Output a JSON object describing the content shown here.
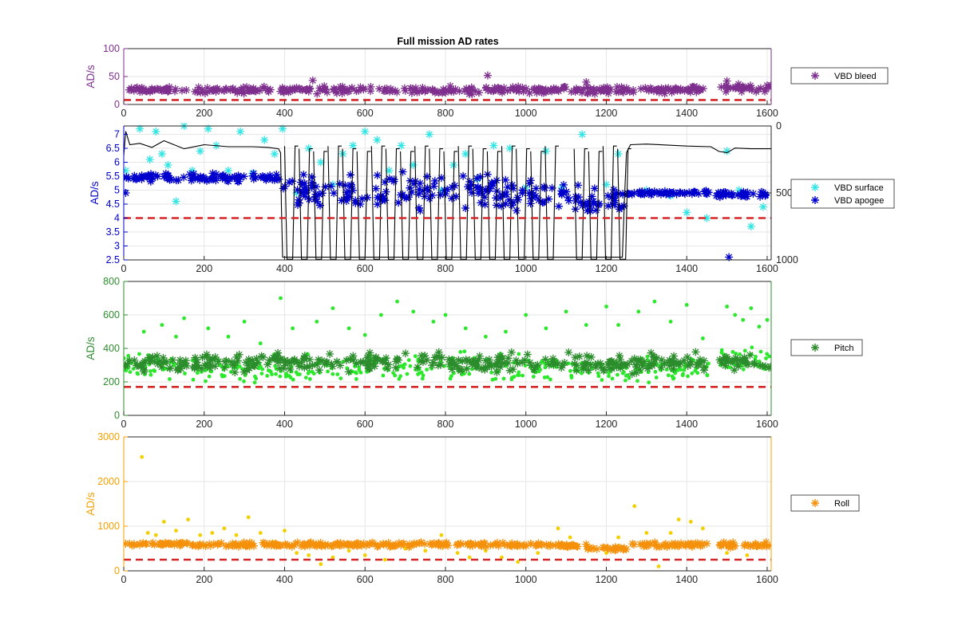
{
  "chart_data": [
    {
      "type": "scatter",
      "title": "Full mission AD rates",
      "ylabel": "AD/s",
      "xlim": [
        0,
        1610
      ],
      "ylim": [
        0,
        100
      ],
      "xticks": [
        "0",
        "200",
        "400",
        "600",
        "800",
        "1000",
        "1200",
        "1400",
        "1600"
      ],
      "yticks": [
        "0",
        "50",
        "100"
      ],
      "grid": true,
      "legend_position": "right",
      "axis_color": "#7E2F8E",
      "threshold": {
        "value": 8,
        "color": "#D62728"
      },
      "series": [
        {
          "name": "VBD bleed",
          "marker": "star",
          "color": "#7E2F8E",
          "segments": [
            {
              "x0": 0,
              "x1": 160,
              "y": 26,
              "spread": 3.5
            },
            {
              "x0": 175,
              "x1": 1455,
              "y": 26,
              "spread": 4.5
            },
            {
              "x0": 1480,
              "x1": 1610,
              "y": 30,
              "spread": 5
            }
          ],
          "x": [
            470,
            905,
            1150,
            1500
          ],
          "y": [
            43,
            52,
            40,
            42
          ]
        }
      ]
    },
    {
      "type": "scatter",
      "ylabel": "AD/s",
      "xlim": [
        0,
        1610
      ],
      "ylim": [
        2.5,
        7.3
      ],
      "xticks": [
        "0",
        "200",
        "400",
        "600",
        "800",
        "1000",
        "1200",
        "1400",
        "1600"
      ],
      "yticks": [
        "2.5",
        "3",
        "3.5",
        "4",
        "4.5",
        "5",
        "5.5",
        "6",
        "6.5",
        "7"
      ],
      "y2lim": [
        0,
        1000
      ],
      "y2ticks": [
        "0",
        "500",
        "1000"
      ],
      "grid": true,
      "legend_position": "right",
      "axis_color": "#0000CC",
      "threshold": {
        "value": 4.0,
        "color": "#D62728"
      },
      "series": [
        {
          "name": "VBD surface",
          "marker": "star",
          "color": "#33E5E5",
          "x": [
            5,
            40,
            65,
            80,
            95,
            110,
            130,
            150,
            170,
            190,
            210,
            230,
            260,
            290,
            320,
            350,
            375,
            395,
            430,
            460,
            490,
            520,
            545,
            570,
            600,
            630,
            660,
            690,
            720,
            760,
            790,
            820,
            850,
            880,
            920,
            960,
            1000,
            1050,
            1090,
            1140,
            1200,
            1230,
            1300,
            1360,
            1400,
            1450,
            1500,
            1530,
            1560,
            1590
          ],
          "y": [
            5.7,
            7.2,
            6.1,
            7.1,
            6.3,
            5.9,
            4.6,
            7.3,
            5.7,
            6.4,
            7.2,
            6.6,
            5.7,
            7.1,
            5.6,
            6.8,
            6.3,
            7.2,
            4.9,
            6.5,
            6.0,
            5.2,
            6.3,
            6.6,
            7.1,
            6.8,
            5.7,
            6.6,
            5.9,
            7.0,
            5.0,
            5.9,
            6.3,
            5.4,
            6.6,
            6.5,
            5.1,
            6.4,
            5.1,
            7.0,
            5.2,
            6.3,
            5.0,
            4.8,
            4.2,
            4.0,
            6.4,
            5.0,
            3.7,
            4.4
          ]
        },
        {
          "name": "VBD apogee",
          "marker": "star",
          "color": "#0000CC",
          "segments": [
            {
              "x0": 0,
              "x1": 390,
              "y": 5.45,
              "spread": 0.1
            },
            {
              "x0": 395,
              "x1": 1040,
              "y": 4.9,
              "spread": 0.45
            },
            {
              "x0": 1040,
              "x1": 1250,
              "y": 4.6,
              "spread": 0.45
            },
            {
              "x0": 1250,
              "x1": 1460,
              "y": 4.9,
              "spread": 0.06
            },
            {
              "x0": 1470,
              "x1": 1610,
              "y": 4.85,
              "spread": 0.08
            }
          ],
          "x": [
            5,
            1505,
            1595
          ],
          "y": [
            4.9,
            2.6,
            4.8
          ]
        },
        {
          "name": "",
          "marker": "line",
          "color": "#000000",
          "axis": "right",
          "x": [
            0,
            5,
            15,
            40,
            70,
            100,
            150,
            200,
            260,
            320,
            360,
            385,
            390,
            392,
            395,
            1240,
            1245,
            1250,
            1260,
            1300,
            1400,
            1460,
            1480,
            1500,
            1520,
            1560,
            1610
          ],
          "y": [
            220,
            40,
            140,
            130,
            160,
            110,
            170,
            140,
            155,
            155,
            160,
            170,
            200,
            600,
            980,
            980,
            560,
            200,
            140,
            135,
            150,
            155,
            190,
            200,
            165,
            170,
            170
          ]
        }
      ]
    },
    {
      "type": "scatter",
      "ylabel": "AD/s",
      "xlim": [
        0,
        1610
      ],
      "ylim": [
        0,
        800
      ],
      "xticks": [
        "0",
        "200",
        "400",
        "600",
        "800",
        "1000",
        "1200",
        "1400",
        "1600"
      ],
      "yticks": [
        "0",
        "200",
        "400",
        "600",
        "800"
      ],
      "grid": true,
      "legend_position": "right",
      "axis_color": "#2E8B2E",
      "threshold": {
        "value": 170,
        "color": "#D62728"
      },
      "series": [
        {
          "name": "",
          "marker": "dot",
          "color": "#2BE82B",
          "segments": [
            {
              "x0": 0,
              "x1": 160,
              "y": 290,
              "spread": 55
            },
            {
              "x0": 170,
              "x1": 1455,
              "y": 280,
              "spread": 60
            },
            {
              "x0": 1480,
              "x1": 1610,
              "y": 330,
              "spread": 70
            }
          ],
          "x": [
            50,
            95,
            130,
            150,
            210,
            260,
            300,
            340,
            390,
            420,
            480,
            520,
            560,
            600,
            640,
            680,
            720,
            770,
            800,
            850,
            900,
            950,
            1000,
            1050,
            1100,
            1150,
            1200,
            1230,
            1280,
            1320,
            1360,
            1400,
            1440,
            1500,
            1520,
            1540,
            1560,
            1580,
            1600
          ],
          "y": [
            500,
            540,
            470,
            580,
            520,
            470,
            560,
            430,
            700,
            520,
            560,
            640,
            520,
            480,
            600,
            680,
            620,
            560,
            600,
            520,
            470,
            500,
            600,
            520,
            620,
            540,
            650,
            540,
            620,
            680,
            560,
            660,
            460,
            650,
            600,
            570,
            640,
            530,
            570
          ]
        },
        {
          "name": "Pitch",
          "marker": "star",
          "color": "#2B8C2B",
          "segments": [
            {
              "x0": 0,
              "x1": 160,
              "y": 305,
              "spread": 35
            },
            {
              "x0": 170,
              "x1": 1455,
              "y": 315,
              "spread": 40
            },
            {
              "x0": 1480,
              "x1": 1610,
              "y": 320,
              "spread": 35
            }
          ],
          "x": [],
          "y": []
        }
      ]
    },
    {
      "type": "scatter",
      "ylabel": "AD/s",
      "xlim": [
        0,
        1610
      ],
      "ylim": [
        0,
        3000
      ],
      "xticks": [
        "0",
        "200",
        "400",
        "600",
        "800",
        "1000",
        "1200",
        "1400",
        "1600"
      ],
      "yticks": [
        "0",
        "1000",
        "2000",
        "3000"
      ],
      "grid": true,
      "legend_position": "right",
      "axis_color": "#F5A000",
      "threshold": {
        "value": 250,
        "color": "#D62728"
      },
      "series": [
        {
          "name": "",
          "marker": "dot",
          "color": "#F2D000",
          "x": [
            45,
            60,
            80,
            100,
            130,
            160,
            190,
            220,
            250,
            280,
            310,
            340,
            370,
            400,
            430,
            460,
            490,
            520,
            560,
            600,
            650,
            700,
            750,
            790,
            830,
            860,
            900,
            940,
            980,
            1030,
            1080,
            1110,
            1150,
            1200,
            1230,
            1270,
            1300,
            1330,
            1360,
            1380,
            1410,
            1440,
            1500,
            1550
          ],
          "y": [
            2550,
            850,
            800,
            1100,
            900,
            1150,
            800,
            850,
            950,
            800,
            1200,
            850,
            650,
            900,
            400,
            350,
            150,
            300,
            450,
            350,
            250,
            500,
            450,
            800,
            400,
            300,
            450,
            300,
            200,
            400,
            950,
            750,
            600,
            400,
            750,
            1450,
            850,
            100,
            850,
            1150,
            1100,
            950,
            400,
            350
          ]
        },
        {
          "name": "Roll",
          "marker": "star",
          "color": "#F5900A",
          "segments": [
            {
              "x0": 0,
              "x1": 160,
              "y": 600,
              "spread": 30
            },
            {
              "x0": 170,
              "x1": 1050,
              "y": 590,
              "spread": 35
            },
            {
              "x0": 1050,
              "x1": 1150,
              "y": 560,
              "spread": 30
            },
            {
              "x0": 1150,
              "x1": 1250,
              "y": 500,
              "spread": 30
            },
            {
              "x0": 1250,
              "x1": 1455,
              "y": 580,
              "spread": 35
            },
            {
              "x0": 1480,
              "x1": 1610,
              "y": 580,
              "spread": 40
            }
          ],
          "x": [],
          "y": []
        }
      ]
    }
  ]
}
